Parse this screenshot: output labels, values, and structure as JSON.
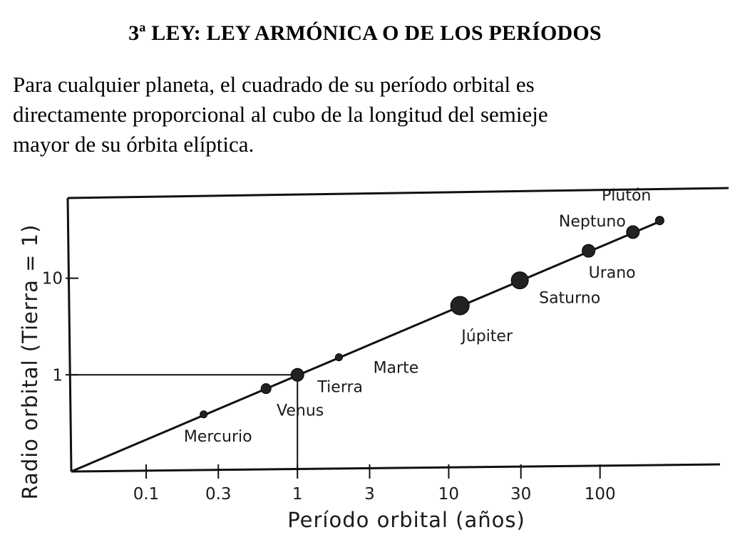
{
  "slide": {
    "title": "3ª LEY: LEY ARMÓNICA O DE LOS PERÍODOS",
    "text_lines": [
      "Para cualquier planeta, el cuadrado de su período orbital es",
      "directamente proporcional al cubo de la longitud del semieje",
      "mayor de su órbita elíptica."
    ]
  },
  "chart_data": {
    "type": "scatter",
    "title": "",
    "xlabel": "Período orbital (años)",
    "ylabel": "Radio orbital (Tierra = 1)",
    "x_scale": "log",
    "y_scale": "log",
    "x_ticks": [
      {
        "value": 0.1,
        "label": "0.1"
      },
      {
        "value": 0.3,
        "label": "0.3"
      },
      {
        "value": 1,
        "label": "1"
      },
      {
        "value": 3,
        "label": "3"
      },
      {
        "value": 10,
        "label": "10"
      },
      {
        "value": 30,
        "label": "30"
      },
      {
        "value": 100,
        "label": "100"
      }
    ],
    "y_ticks": [
      {
        "value": 1,
        "label": "1"
      },
      {
        "value": 10,
        "label": "10"
      }
    ],
    "xlim": [
      0.032,
      500
    ],
    "ylim": [
      0.1,
      60
    ],
    "reference_point": {
      "x": 1,
      "y": 1
    },
    "fit_line": [
      [
        0.032,
        0.1
      ],
      [
        262,
        40
      ]
    ],
    "points": [
      {
        "name": "Mercurio",
        "x": 0.24,
        "y": 0.39,
        "size": 5
      },
      {
        "name": "Venus",
        "x": 0.62,
        "y": 0.72,
        "size": 7
      },
      {
        "name": "Tierra",
        "x": 1.0,
        "y": 1.0,
        "size": 9
      },
      {
        "name": "Marte",
        "x": 1.88,
        "y": 1.52,
        "size": 5
      },
      {
        "name": "Júpiter",
        "x": 11.86,
        "y": 5.2,
        "size": 13
      },
      {
        "name": "Saturno",
        "x": 29.5,
        "y": 9.5,
        "size": 12
      },
      {
        "name": "Urano",
        "x": 84,
        "y": 19.2,
        "size": 9
      },
      {
        "name": "Neptuno",
        "x": 165,
        "y": 30,
        "size": 9
      },
      {
        "name": "Plutón",
        "x": 248,
        "y": 39.5,
        "size": 6
      }
    ],
    "grid": false,
    "legend": "none"
  }
}
